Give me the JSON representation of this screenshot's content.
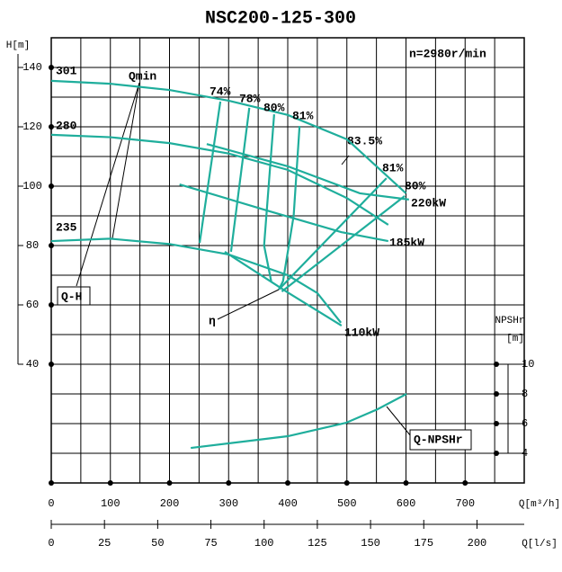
{
  "chart_data": {
    "type": "line",
    "title": "NSC200-125-300",
    "annotations": [
      "n=2980r/min",
      "Qmin",
      "83.5%",
      "η",
      "Q-H"
    ],
    "x_label": "Q[m³/h]",
    "x2_label": "Q[l/s]",
    "y_label": "H[m]",
    "y2_label": [
      "NPSHr",
      "[m]"
    ],
    "xlim": [
      0,
      800
    ],
    "xticks": [
      0,
      100,
      200,
      300,
      400,
      500,
      600,
      700
    ],
    "x2lim": [
      0,
      222.2
    ],
    "x2ticks": [
      0,
      25,
      50,
      75,
      100,
      125,
      150,
      175,
      200
    ],
    "ylim": [
      0,
      150
    ],
    "yticks": [
      40,
      60,
      80,
      100,
      120,
      140
    ],
    "y2lim": [
      2,
      32
    ],
    "y2ticks": [
      4,
      6,
      8,
      10
    ],
    "xgrid": [
      0,
      50,
      100,
      150,
      200,
      250,
      300,
      350,
      400,
      450,
      500,
      550,
      600,
      650,
      700,
      750,
      800
    ],
    "ygrid": [
      0,
      10,
      20,
      30,
      40,
      50,
      60,
      70,
      80,
      90,
      100,
      110,
      120,
      130,
      140,
      150
    ],
    "grid": true,
    "series": [
      {
        "name": "301",
        "color": "#1fae9c",
        "x": [
          0,
          100,
          200,
          300,
          400,
          500,
          600
        ],
        "values": [
          135.5,
          134.5,
          132.4,
          128.8,
          124,
          115.8,
          97.6
        ]
      },
      {
        "name": "280",
        "color": "#1fae9c",
        "x": [
          0,
          100,
          200,
          300,
          400,
          500,
          570
        ],
        "values": [
          117.3,
          116.5,
          114.5,
          111,
          105.5,
          96,
          87
        ]
      },
      {
        "name": "235",
        "color": "#1fae9c",
        "x": [
          0,
          100,
          200,
          300,
          400,
          450,
          490
        ],
        "values": [
          81.5,
          82.3,
          80.5,
          77,
          70,
          64,
          54
        ]
      },
      {
        "name": "74%",
        "color": "#1fae9c",
        "x": [
          286,
          251
        ],
        "values": [
          128.5,
          80.9
        ]
      },
      {
        "name": "78%",
        "color": "#1fae9c",
        "x": [
          335,
          304
        ],
        "values": [
          126.4,
          77.9
        ]
      },
      {
        "name": "80%",
        "color": "#1fae9c",
        "x": [
          377,
          360,
          372
        ],
        "values": [
          124.2,
          80,
          68
        ]
      },
      {
        "name": "81%",
        "color": "#1fae9c",
        "x": [
          420,
          410,
          392,
          385
        ],
        "values": [
          120.3,
          90,
          68,
          65.2
        ]
      },
      {
        "name": "81%",
        "color": "#1fae9c",
        "x": [
          385,
          567
        ],
        "values": [
          65.2,
          102.7
        ]
      },
      {
        "name": "80%",
        "color": "#1fae9c",
        "x": [
          390,
          598
        ],
        "values": [
          64.5,
          96.7
        ]
      },
      {
        "name": "220kW",
        "color": "#1fae9c",
        "x": [
          263,
          400,
          522,
          605
        ],
        "values": [
          114.2,
          106.7,
          97.6,
          95.5
        ]
      },
      {
        "name": "185kW",
        "color": "#1fae9c",
        "x": [
          217,
          370,
          491,
          570
        ],
        "values": [
          100.6,
          91.5,
          84.5,
          81.5
        ]
      },
      {
        "name": "110kW",
        "color": "#1fae9c",
        "x": [
          293.5,
          400,
          491
        ],
        "values": [
          77.9,
          64.2,
          53
        ]
      },
      {
        "name": "Q-NPSHr",
        "color": "#1fae9c",
        "axis": "y2",
        "x": [
          236,
          400,
          499,
          552,
          601
        ],
        "values": [
          4.36,
          5.15,
          6.06,
          6.97,
          8.0
        ]
      }
    ]
  }
}
